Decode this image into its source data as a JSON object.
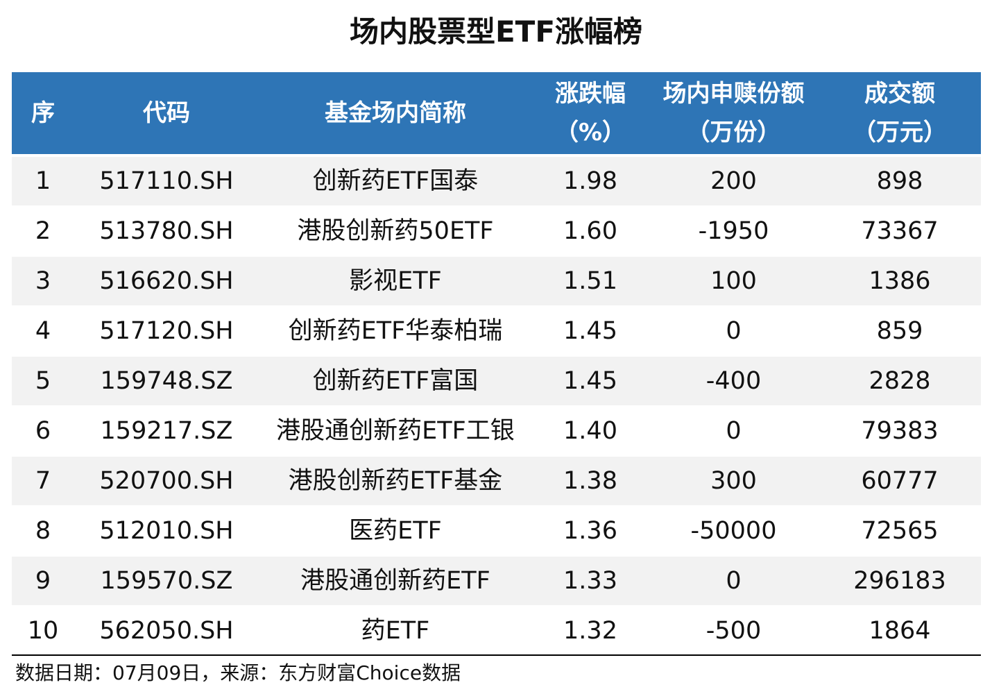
{
  "header": {
    "title": "场内股票型ETF涨幅榜"
  },
  "table": {
    "columns": [
      [
        "序"
      ],
      [
        "代码"
      ],
      [
        "基金场内简称"
      ],
      [
        "涨跌幅",
        "（%）"
      ],
      [
        "场内申赎份额",
        "（万份）"
      ],
      [
        "成交额",
        "（万元）"
      ]
    ],
    "rows": [
      [
        "1",
        "517110.SH",
        "创新药ETF国泰",
        "1.98",
        "200",
        "898"
      ],
      [
        "2",
        "513780.SH",
        "港股创新药50ETF",
        "1.60",
        "-1950",
        "73367"
      ],
      [
        "3",
        "516620.SH",
        "影视ETF",
        "1.51",
        "100",
        "1386"
      ],
      [
        "4",
        "517120.SH",
        "创新药ETF华泰柏瑞",
        "1.45",
        "0",
        "859"
      ],
      [
        "5",
        "159748.SZ",
        "创新药ETF富国",
        "1.45",
        "-400",
        "2828"
      ],
      [
        "6",
        "159217.SZ",
        "港股通创新药ETF工银",
        "1.40",
        "0",
        "79383"
      ],
      [
        "7",
        "520700.SH",
        "港股创新药ETF基金",
        "1.38",
        "300",
        "60777"
      ],
      [
        "8",
        "512010.SH",
        "医药ETF",
        "1.36",
        "-50000",
        "72565"
      ],
      [
        "9",
        "159570.SZ",
        "港股通创新药ETF",
        "1.33",
        "0",
        "296183"
      ],
      [
        "10",
        "562050.SH",
        "药ETF",
        "1.32",
        "-500",
        "1864"
      ]
    ]
  },
  "footer": {
    "note": "数据日期：07月09日，来源：东方财富Choice数据"
  }
}
